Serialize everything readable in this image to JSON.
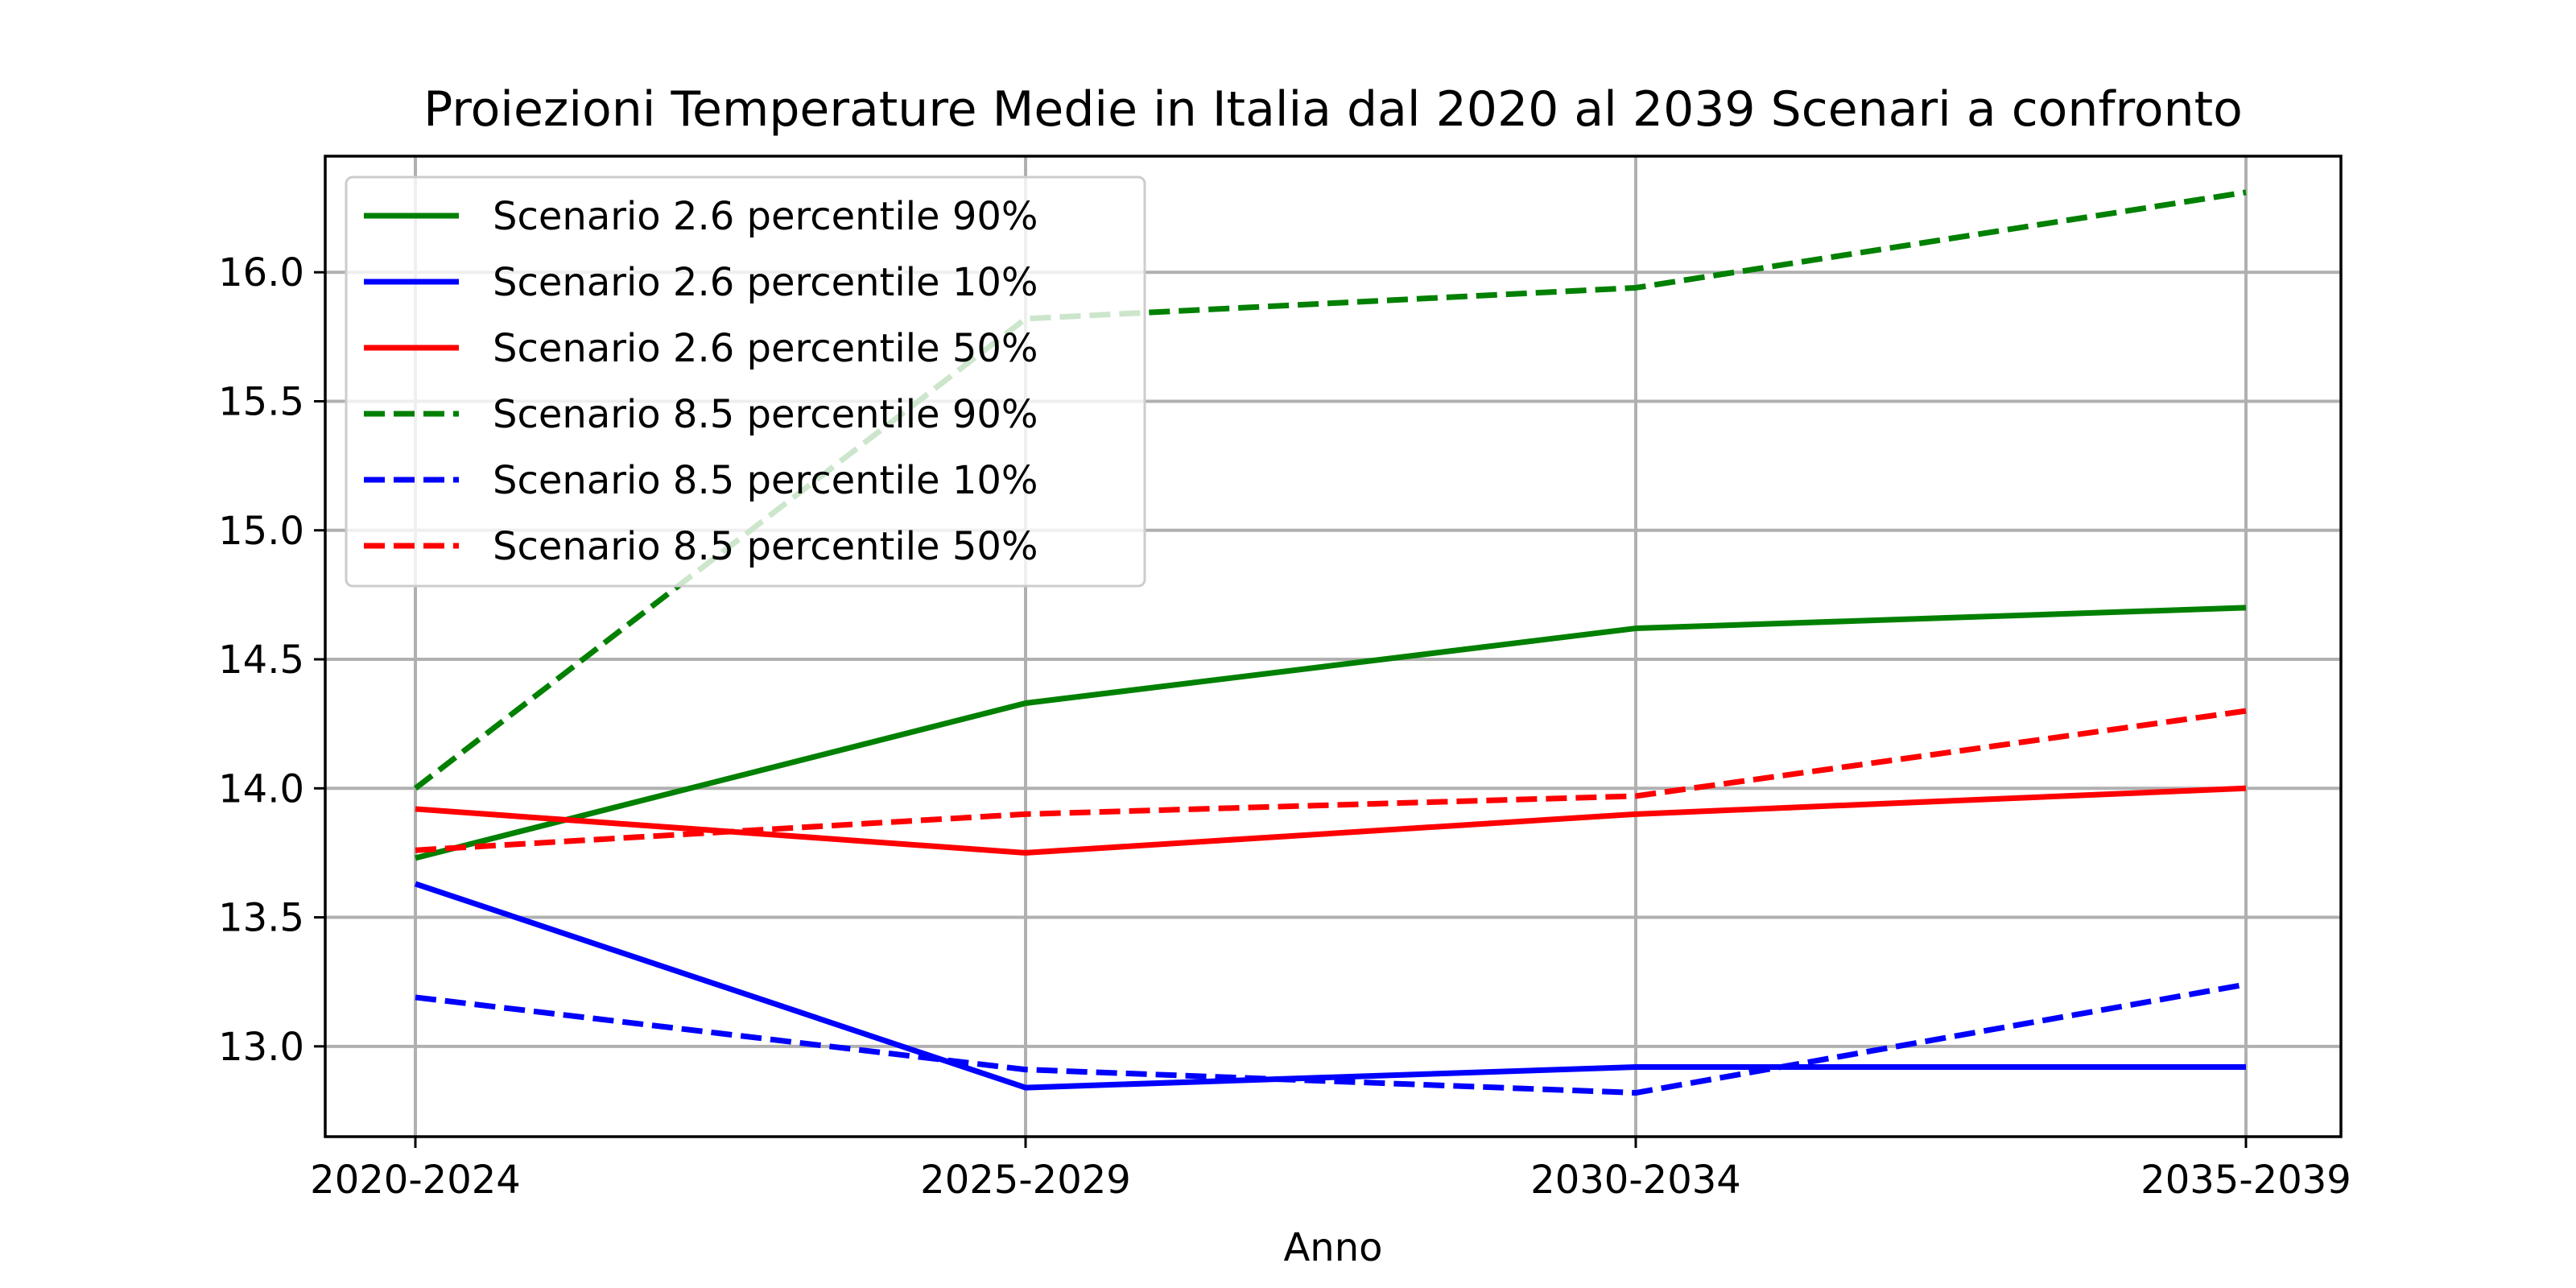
{
  "chart_data": {
    "type": "line",
    "title": "Proiezioni Temperature Medie in Italia dal 2020 al 2039 Scenari a confronto",
    "xlabel": "Anno",
    "ylabel": "",
    "categories": [
      "2020-2024",
      "2025-2029",
      "2030-2034",
      "2035-2039"
    ],
    "ylim": [
      12.65,
      16.45
    ],
    "yticks": [
      13.0,
      13.5,
      14.0,
      14.5,
      15.0,
      15.5,
      16.0
    ],
    "yticklabels": [
      "13.0",
      "13.5",
      "14.0",
      "14.5",
      "15.0",
      "15.5",
      "16.0"
    ],
    "grid": true,
    "legend_position": "top-left",
    "series": [
      {
        "name": "Scenario 2.6 percentile 90%",
        "color": "#008000",
        "dash": "solid",
        "values": [
          13.73,
          14.33,
          14.62,
          14.7
        ]
      },
      {
        "name": "Scenario 2.6 percentile 10%",
        "color": "#0000ff",
        "dash": "solid",
        "values": [
          13.63,
          12.84,
          12.92,
          12.92
        ]
      },
      {
        "name": "Scenario 2.6 percentile 50%",
        "color": "#ff0000",
        "dash": "solid",
        "values": [
          13.92,
          13.75,
          13.9,
          14.0
        ]
      },
      {
        "name": "Scenario 8.5 percentile 90%",
        "color": "#008000",
        "dash": "dashed",
        "values": [
          14.0,
          15.82,
          15.94,
          16.31
        ]
      },
      {
        "name": "Scenario 8.5 percentile 10%",
        "color": "#0000ff",
        "dash": "dashed",
        "values": [
          13.19,
          12.91,
          12.82,
          13.24
        ]
      },
      {
        "name": "Scenario 8.5 percentile 50%",
        "color": "#ff0000",
        "dash": "dashed",
        "values": [
          13.76,
          13.9,
          13.97,
          14.3
        ]
      }
    ]
  }
}
